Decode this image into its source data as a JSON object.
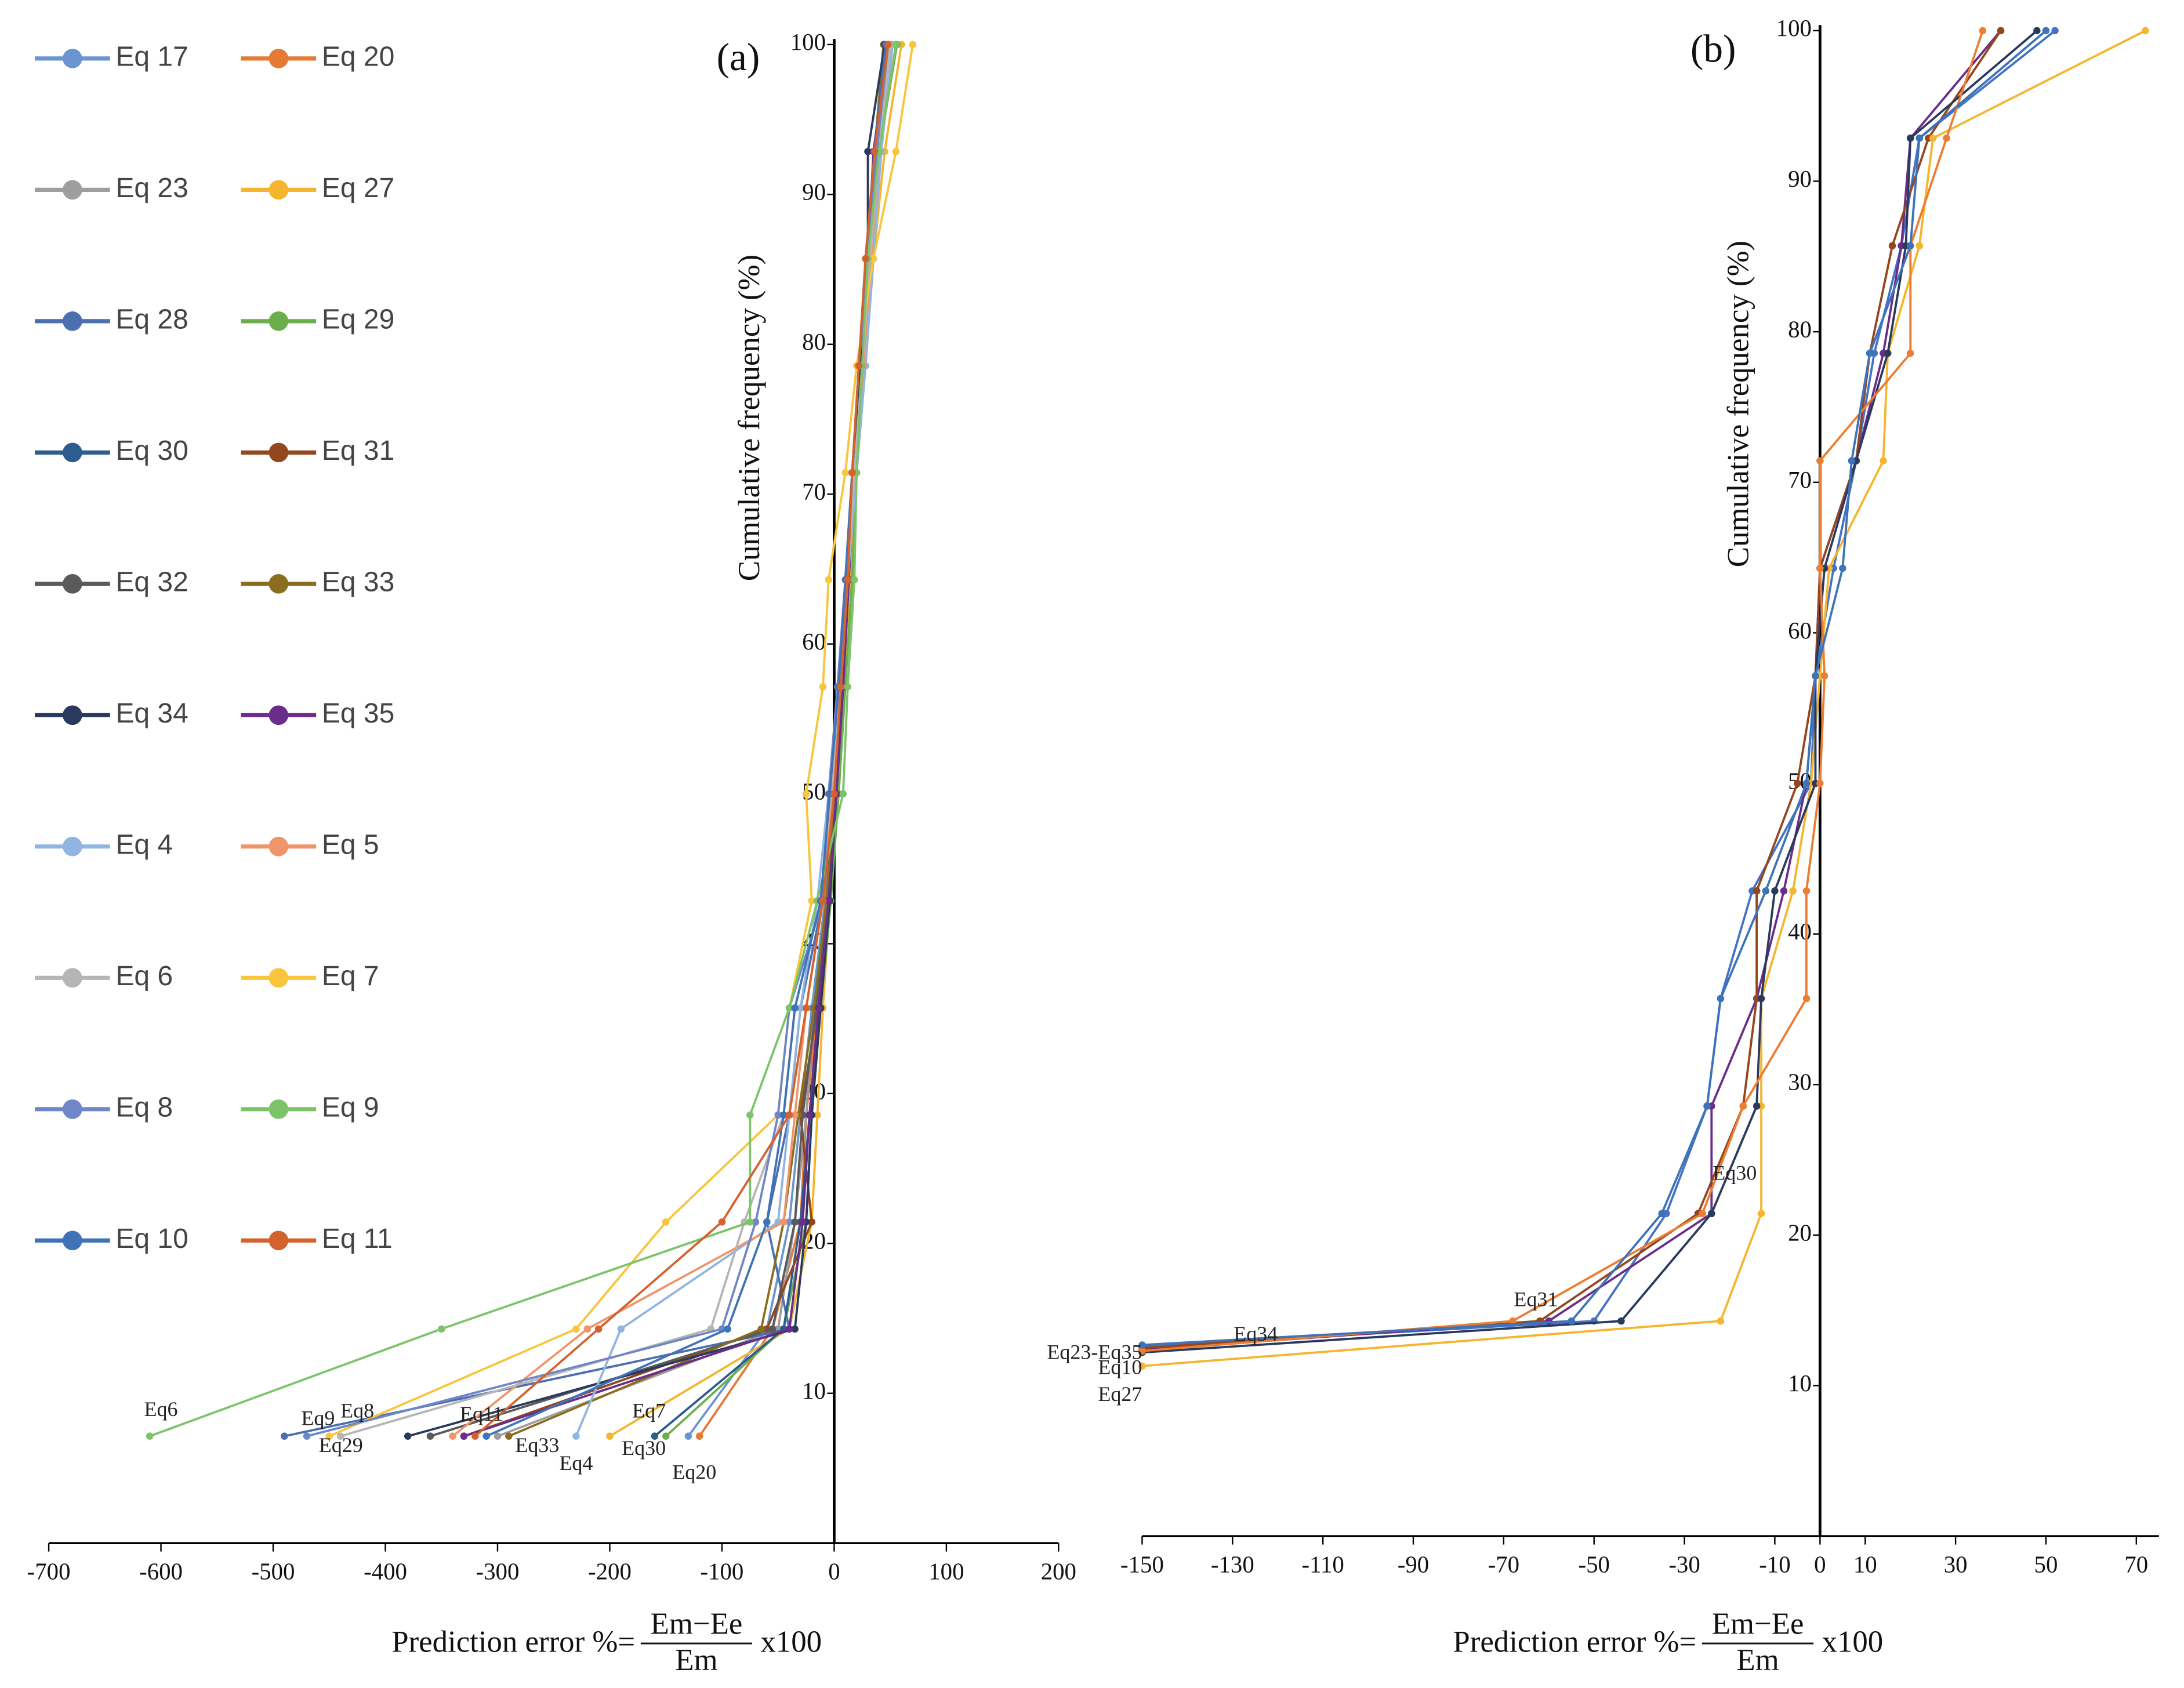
{
  "chart_data": [
    {
      "type": "line",
      "panel_label": "(a)",
      "ylabel": "Cumulative frequency (%)",
      "xlabel": {
        "prefix": "Prediction error %=",
        "numerator": "Em−Ee",
        "denominator": "Em",
        "suffix": "x100"
      },
      "xlim": [
        -700,
        200
      ],
      "xticks": [
        -700,
        -600,
        -500,
        -400,
        -300,
        -200,
        -100,
        0,
        100,
        200
      ],
      "ylim": [
        0,
        100
      ],
      "yticks": [
        10,
        20,
        30,
        40,
        50,
        60,
        70,
        80,
        90,
        100
      ],
      "series": [
        {
          "name": "Eq 17",
          "color": "#6a95d0",
          "x": [
            -130,
            -60,
            -40,
            -30,
            -20,
            -8,
            0,
            5,
            12,
            18,
            25,
            30,
            38,
            50
          ],
          "values": [
            7.14,
            14.29,
            21.43,
            28.57,
            35.71,
            42.86,
            50,
            57.14,
            64.29,
            71.43,
            78.57,
            85.71,
            92.86,
            100
          ]
        },
        {
          "name": "Eq 20",
          "color": "#e57a35",
          "x": [
            -120,
            -55,
            -30,
            -25,
            -15,
            -5,
            2,
            8,
            14,
            16,
            24,
            30,
            40,
            55
          ],
          "values": [
            7.14,
            14.29,
            21.43,
            28.57,
            35.71,
            42.86,
            50,
            57.14,
            64.29,
            71.43,
            78.57,
            85.71,
            92.86,
            100
          ]
        },
        {
          "name": "Eq 23",
          "color": "#9e9e9e",
          "x": [
            -300,
            -50,
            -35,
            -25,
            -18,
            -6,
            1,
            7,
            12,
            18,
            26,
            32,
            42,
            52
          ],
          "values": [
            7.14,
            14.29,
            21.43,
            28.57,
            35.71,
            42.86,
            50,
            57.14,
            64.29,
            71.43,
            78.57,
            85.71,
            92.86,
            100
          ]
        },
        {
          "name": "Eq 27",
          "color": "#f5b52e",
          "x": [
            -200,
            -40,
            -20,
            -15,
            -10,
            -4,
            3,
            9,
            15,
            20,
            28,
            35,
            45,
            60
          ],
          "values": [
            7.14,
            14.29,
            21.43,
            28.57,
            35.71,
            42.86,
            50,
            57.14,
            64.29,
            71.43,
            78.57,
            85.71,
            92.86,
            100
          ]
        },
        {
          "name": "Eq 28",
          "color": "#4c6fb0",
          "x": [
            -490,
            -40,
            -60,
            -40,
            -30,
            -10,
            -2,
            6,
            12,
            18,
            24,
            30,
            36,
            48
          ],
          "values": [
            7.14,
            14.29,
            21.43,
            28.57,
            35.71,
            42.86,
            50,
            57.14,
            64.29,
            71.43,
            78.57,
            85.71,
            92.86,
            100
          ]
        },
        {
          "name": "Eq 29",
          "color": "#6aaf4c",
          "x": [
            -150,
            -45,
            -25,
            -20,
            -12,
            -3,
            4,
            10,
            16,
            20,
            26,
            32,
            40,
            56
          ],
          "values": [
            7.14,
            14.29,
            21.43,
            28.57,
            35.71,
            42.86,
            50,
            57.14,
            64.29,
            71.43,
            78.57,
            85.71,
            92.86,
            100
          ]
        },
        {
          "name": "Eq 30",
          "color": "#2d5c8e",
          "x": [
            -160,
            -45,
            -30,
            -22,
            -14,
            -5,
            2,
            8,
            13,
            18,
            25,
            31,
            38,
            50
          ],
          "values": [
            7.14,
            14.29,
            21.43,
            28.57,
            35.71,
            42.86,
            50,
            57.14,
            64.29,
            71.43,
            78.57,
            85.71,
            92.86,
            100
          ]
        },
        {
          "name": "Eq 31",
          "color": "#94461f",
          "x": [
            -330,
            -60,
            -20,
            -30,
            -15,
            -6,
            1,
            7,
            12,
            17,
            24,
            30,
            36,
            45
          ],
          "values": [
            7.14,
            14.29,
            21.43,
            28.57,
            35.71,
            42.86,
            50,
            57.14,
            64.29,
            71.43,
            78.57,
            85.71,
            92.86,
            100
          ]
        },
        {
          "name": "Eq 32",
          "color": "#5a5a5a",
          "x": [
            -360,
            -55,
            -35,
            -28,
            -16,
            -6,
            1,
            7,
            12,
            18,
            25,
            31,
            38,
            50
          ],
          "values": [
            7.14,
            14.29,
            21.43,
            28.57,
            35.71,
            42.86,
            50,
            57.14,
            64.29,
            71.43,
            78.57,
            85.71,
            92.86,
            100
          ]
        },
        {
          "name": "Eq 33",
          "color": "#8a6d1e",
          "x": [
            -290,
            -65,
            -45,
            -32,
            -18,
            -7,
            0,
            6,
            11,
            17,
            24,
            30,
            36,
            44
          ],
          "values": [
            7.14,
            14.29,
            21.43,
            28.57,
            35.71,
            42.86,
            50,
            57.14,
            64.29,
            71.43,
            78.57,
            85.71,
            92.86,
            100
          ]
        },
        {
          "name": "Eq 34",
          "color": "#2a3a5e",
          "x": [
            -380,
            -35,
            -25,
            -20,
            -12,
            -4,
            2,
            8,
            13,
            18,
            24,
            30,
            30,
            45
          ],
          "values": [
            7.14,
            14.29,
            21.43,
            28.57,
            35.71,
            42.86,
            50,
            57.14,
            64.29,
            71.43,
            78.57,
            85.71,
            92.86,
            100
          ]
        },
        {
          "name": "Eq 35",
          "color": "#6a2d8a",
          "x": [
            -330,
            -40,
            -28,
            -22,
            -14,
            -5,
            2,
            8,
            13,
            18,
            25,
            30,
            35,
            48
          ],
          "values": [
            7.14,
            14.29,
            21.43,
            28.57,
            35.71,
            42.86,
            50,
            57.14,
            64.29,
            71.43,
            78.57,
            85.71,
            92.86,
            100
          ]
        },
        {
          "name": "Eq 4",
          "color": "#8fb5e0",
          "x": [
            -230,
            -190,
            -50,
            -40,
            -30,
            -15,
            -5,
            5,
            12,
            20,
            28,
            35,
            42,
            52
          ],
          "values": [
            7.14,
            14.29,
            21.43,
            28.57,
            35.71,
            42.86,
            50,
            57.14,
            64.29,
            71.43,
            78.57,
            85.71,
            92.86,
            100
          ]
        },
        {
          "name": "Eq 5",
          "color": "#f0956a",
          "x": [
            -340,
            -220,
            -45,
            -35,
            -25,
            -10,
            -2,
            6,
            12,
            18,
            26,
            33,
            40,
            50
          ],
          "values": [
            7.14,
            14.29,
            21.43,
            28.57,
            35.71,
            42.86,
            50,
            57.14,
            64.29,
            71.43,
            78.57,
            85.71,
            92.86,
            100
          ]
        },
        {
          "name": "Eq 6",
          "color": "#b5b5b5",
          "x": [
            -440,
            -110,
            -80,
            -45,
            -35,
            -12,
            -3,
            5,
            12,
            18,
            25,
            32,
            40,
            50
          ],
          "values": [
            7.14,
            14.29,
            21.43,
            28.57,
            35.71,
            42.86,
            50,
            57.14,
            64.29,
            71.43,
            78.57,
            85.71,
            92.86,
            100
          ]
        },
        {
          "name": "Eq 7",
          "color": "#f8c53d",
          "x": [
            -450,
            -230,
            -150,
            -50,
            -40,
            -20,
            -25,
            -10,
            -5,
            10,
            20,
            35,
            55,
            70
          ],
          "values": [
            7.14,
            14.29,
            21.43,
            28.57,
            35.71,
            42.86,
            50,
            57.14,
            64.29,
            71.43,
            78.57,
            85.71,
            92.86,
            100
          ]
        },
        {
          "name": "Eq 8",
          "color": "#6f86c7",
          "x": [
            -470,
            -100,
            -70,
            -50,
            -40,
            -10,
            -5,
            3,
            10,
            16,
            22,
            30,
            38,
            48
          ],
          "values": [
            7.14,
            14.29,
            21.43,
            28.57,
            35.71,
            42.86,
            50,
            57.14,
            64.29,
            71.43,
            78.57,
            85.71,
            92.86,
            100
          ]
        },
        {
          "name": "Eq 9",
          "color": "#7cc36a",
          "x": [
            -610,
            -350,
            -75,
            -75,
            -40,
            -15,
            8,
            12,
            18,
            20,
            25,
            30,
            40,
            55
          ],
          "values": [
            7.14,
            14.29,
            21.43,
            28.57,
            35.71,
            42.86,
            50,
            57.14,
            64.29,
            71.43,
            78.57,
            85.71,
            92.86,
            100
          ]
        },
        {
          "name": "Eq 10",
          "color": "#3f73b8",
          "x": [
            -310,
            -95,
            -60,
            -45,
            -35,
            -12,
            -4,
            4,
            10,
            16,
            22,
            28,
            36,
            46
          ],
          "values": [
            7.14,
            14.29,
            21.43,
            28.57,
            35.71,
            42.86,
            50,
            57.14,
            64.29,
            71.43,
            78.57,
            85.71,
            92.86,
            100
          ]
        },
        {
          "name": "Eq 11",
          "color": "#d4622d",
          "x": [
            -320,
            -210,
            -100,
            -40,
            -25,
            -10,
            0,
            6,
            12,
            16,
            22,
            28,
            36,
            48
          ],
          "values": [
            7.14,
            14.29,
            21.43,
            28.57,
            35.71,
            42.86,
            50,
            57.14,
            64.29,
            71.43,
            78.57,
            85.71,
            92.86,
            100
          ]
        }
      ],
      "annotations": [
        {
          "text": "Eq6",
          "x": -585,
          "y": 8.8
        },
        {
          "text": "Eq9",
          "x": -445,
          "y": 8.2
        },
        {
          "text": "Eq8",
          "x": -410,
          "y": 8.7
        },
        {
          "text": "Eq29",
          "x": -420,
          "y": 6.4
        },
        {
          "text": "Eq11",
          "x": -295,
          "y": 8.5
        },
        {
          "text": "Eq33",
          "x": -245,
          "y": 6.4
        },
        {
          "text": "Eq4",
          "x": -215,
          "y": 5.2
        },
        {
          "text": "Eq7",
          "x": -150,
          "y": 8.7
        },
        {
          "text": "Eq30",
          "x": -150,
          "y": 6.2
        },
        {
          "text": "Eq20",
          "x": -105,
          "y": 4.6
        }
      ]
    },
    {
      "type": "line",
      "panel_label": "(b)",
      "ylabel": "Cumulative frequency (%)",
      "xlabel": {
        "prefix": "Prediction error %=",
        "numerator": "Em−Ee",
        "denominator": "Em",
        "suffix": "x100"
      },
      "xlim": [
        -150,
        75
      ],
      "xticks": [
        -150,
        -130,
        -110,
        -90,
        -70,
        -50,
        -30,
        -10,
        0,
        10,
        30,
        50,
        70
      ],
      "ylim": [
        0,
        100
      ],
      "yticks": [
        10,
        20,
        30,
        40,
        50,
        60,
        70,
        80,
        90,
        100
      ],
      "series": [
        {
          "color": "#4472c4",
          "x": [
            -150,
            -50,
            -34,
            -25,
            -22,
            -15,
            -2,
            -1,
            3,
            8,
            12,
            18,
            22,
            52
          ],
          "values": [
            12.6,
            14.29,
            21.43,
            28.57,
            35.71,
            42.86,
            50,
            57.14,
            64.29,
            71.43,
            78.57,
            85.71,
            92.86,
            100
          ]
        },
        {
          "color": "#6a2d8a",
          "x": [
            -150,
            -60,
            -24,
            -24,
            -14,
            -8,
            -3,
            -1,
            0,
            8,
            14,
            18,
            20,
            40
          ],
          "values": [
            12.4,
            14.29,
            21.43,
            28.57,
            35.71,
            42.86,
            50,
            57.14,
            64.29,
            71.43,
            78.57,
            85.71,
            92.86,
            100
          ]
        },
        {
          "color": "#94461f",
          "x": [
            -150,
            -62,
            -27,
            -17,
            -14,
            -14,
            -5,
            -1,
            0,
            8,
            11,
            16,
            24,
            40
          ],
          "values": [
            12.5,
            14.29,
            21.43,
            28.57,
            35.71,
            42.86,
            50,
            57.14,
            64.29,
            71.43,
            78.57,
            85.71,
            92.86,
            100
          ]
        },
        {
          "color": "#f5b52e",
          "x": [
            -150,
            -22,
            -13,
            -13,
            -13,
            -6,
            -2,
            0,
            2,
            14,
            15,
            22,
            25,
            72
          ],
          "values": [
            11.3,
            14.29,
            21.43,
            28.57,
            35.71,
            42.86,
            50,
            57.14,
            64.29,
            71.43,
            78.57,
            85.71,
            92.86,
            100
          ]
        },
        {
          "color": "#2a3a5e",
          "x": [
            -150,
            -44,
            -24,
            -14,
            -13,
            -10,
            -1,
            -1,
            1,
            8,
            15,
            19,
            20,
            48
          ],
          "values": [
            12.2,
            14.29,
            21.43,
            28.57,
            35.71,
            42.86,
            50,
            57.14,
            64.29,
            71.43,
            78.57,
            85.71,
            92.86,
            100
          ]
        },
        {
          "color": "#ed7d31",
          "x": [
            -150,
            -68,
            -26,
            -17,
            -3,
            -3,
            0,
            1,
            0,
            0,
            20,
            20,
            28,
            36
          ],
          "values": [
            12.3,
            14.29,
            21.43,
            28.57,
            35.71,
            42.86,
            50,
            57.14,
            64.29,
            71.43,
            78.57,
            85.71,
            92.86,
            100
          ]
        },
        {
          "color": "#3f73b8",
          "x": [
            -150,
            -55,
            -35,
            -25,
            -22,
            -12,
            -3,
            -1,
            5,
            7,
            11,
            20,
            22,
            50
          ],
          "values": [
            12.7,
            14.29,
            21.43,
            28.57,
            35.71,
            42.86,
            50,
            57.14,
            64.29,
            71.43,
            78.57,
            85.71,
            92.86,
            100
          ]
        }
      ],
      "annotations": [
        {
          "text": "Eq34",
          "x": -120,
          "y": 13.3
        },
        {
          "text": "Eq23-Eq35",
          "x": -150,
          "y": 12.1
        },
        {
          "text": "Eq10",
          "x": -150,
          "y": 11.1
        },
        {
          "text": "Eq27",
          "x": -150,
          "y": 9.3
        },
        {
          "text": "Eq31",
          "x": -58,
          "y": 15.6
        },
        {
          "text": "Eq30",
          "x": -14,
          "y": 24
        }
      ]
    }
  ]
}
